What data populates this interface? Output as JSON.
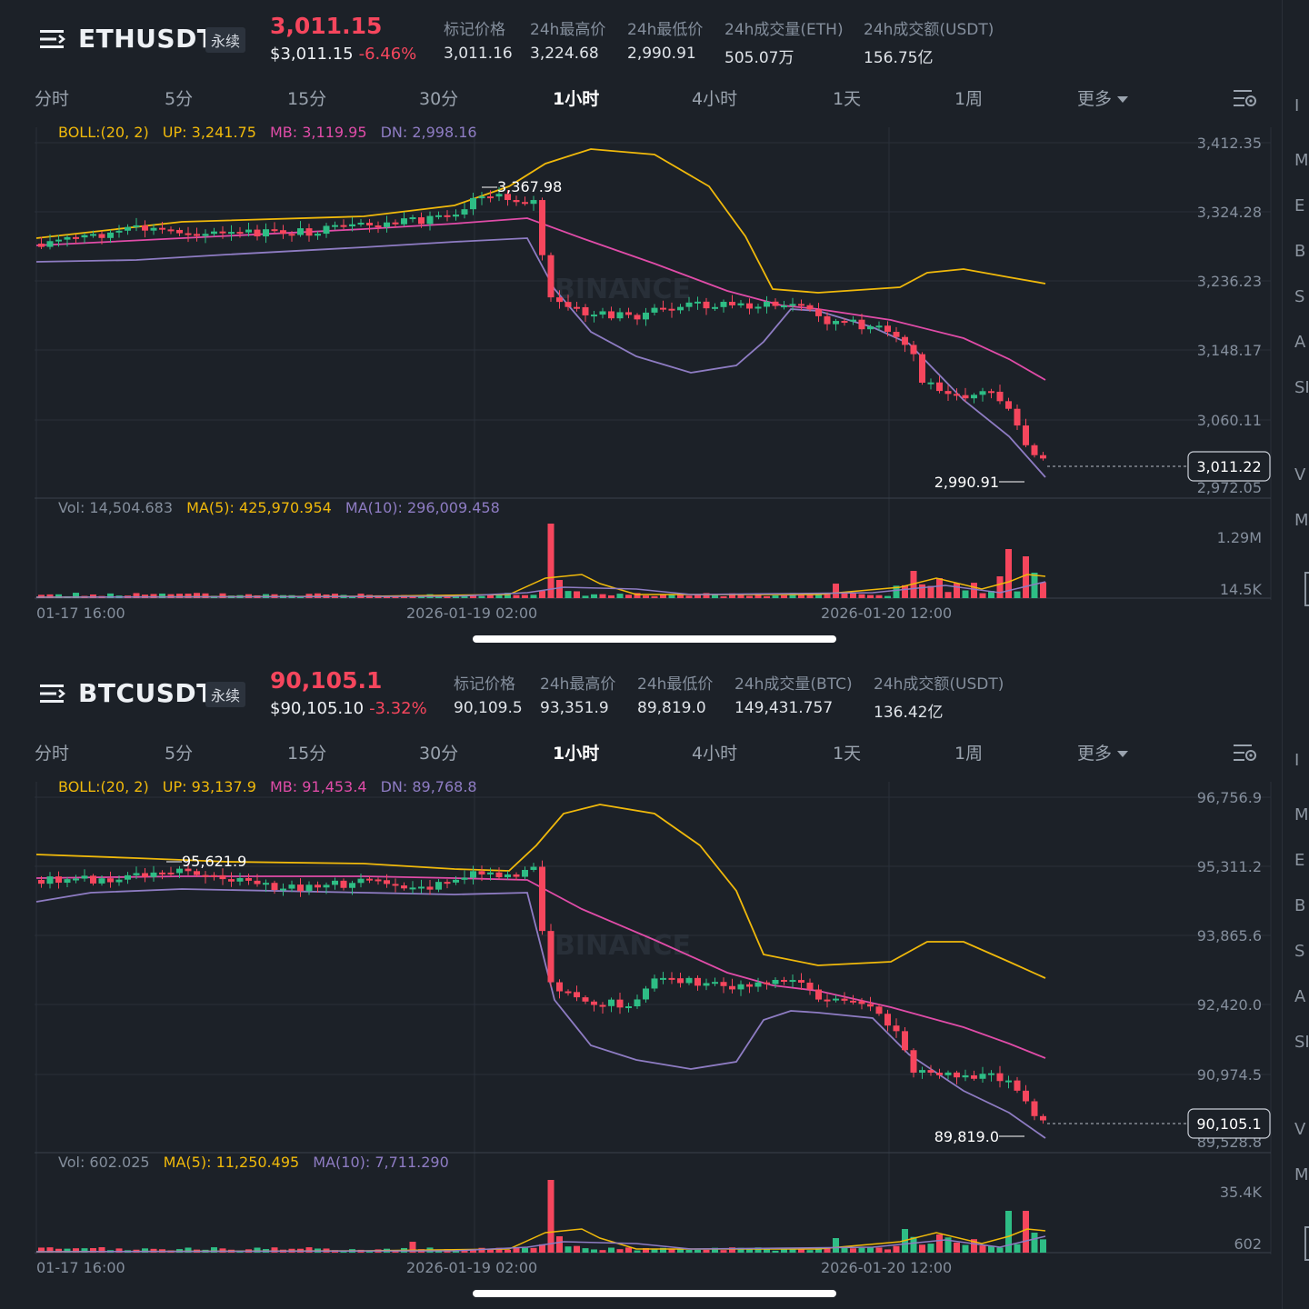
{
  "panels": [
    {
      "symbol": "ETHUSDT",
      "badge": "永续",
      "last_price": "3,011.15",
      "usd_price": "$3,011.15",
      "change_pct": "-6.46%",
      "stats": [
        {
          "label": "标记价格",
          "value": "3,011.16"
        },
        {
          "label": "24h最高价",
          "value": "3,224.68"
        },
        {
          "label": "24h最低价",
          "value": "2,990.91"
        },
        {
          "label": "24h成交量(ETH)",
          "value": "505.07万"
        },
        {
          "label": "24h成交额(USDT)",
          "value": "156.75亿"
        }
      ],
      "boll": {
        "label": "BOLL:(20, 2)",
        "up": "UP: 3,241.75",
        "mb": "MB: 3,119.95",
        "dn": "DN: 2,998.16"
      },
      "price_axis": [
        "3,412.35",
        "3,324.28",
        "3,236.23",
        "3,148.17",
        "3,060.11",
        "2,972.05"
      ],
      "current_tag": "3,011.22",
      "high_marker": "3,367.98",
      "low_marker": "2,990.91",
      "vol_legend": {
        "vol": "Vol: 14,504.683",
        "ma5": "MA(5): 425,970.954",
        "ma10": "MA(10): 296,009.458"
      },
      "vol_axis": [
        "1.29M",
        "14.5K"
      ],
      "time_axis": [
        "01-17 16:00",
        "2026-01-19 02:00",
        "2026-01-20 12:00"
      ],
      "side_letters": [
        "I",
        "M",
        "E",
        "B",
        "S",
        "A",
        "SI",
        "V",
        "M"
      ]
    },
    {
      "symbol": "BTCUSDT",
      "badge": "永续",
      "last_price": "90,105.1",
      "usd_price": "$90,105.10",
      "change_pct": "-3.32%",
      "stats": [
        {
          "label": "标记价格",
          "value": "90,109.5"
        },
        {
          "label": "24h最高价",
          "value": "93,351.9"
        },
        {
          "label": "24h最低价",
          "value": "89,819.0"
        },
        {
          "label": "24h成交量(BTC)",
          "value": "149,431.757"
        },
        {
          "label": "24h成交额(USDT)",
          "value": "136.42亿"
        }
      ],
      "boll": {
        "label": "BOLL:(20, 2)",
        "up": "UP: 93,137.9",
        "mb": "MB: 91,453.4",
        "dn": "DN: 89,768.8"
      },
      "price_axis": [
        "96,756.9",
        "95,311.2",
        "93,865.6",
        "92,420.0",
        "90,974.5",
        "89,528.8"
      ],
      "current_tag": "90,105.1",
      "high_marker": "95,621.9",
      "low_marker": "89,819.0",
      "vol_legend": {
        "vol": "Vol: 602.025",
        "ma5": "MA(5): 11,250.495",
        "ma10": "MA(10): 7,711.290"
      },
      "vol_axis": [
        "35.4K",
        "602"
      ],
      "time_axis": [
        "01-17 16:00",
        "2026-01-19 02:00",
        "2026-01-20 12:00"
      ],
      "side_letters": [
        "I",
        "M",
        "E",
        "B",
        "S",
        "A",
        "SI",
        "V",
        "M"
      ]
    }
  ],
  "tabs": [
    "分时",
    "5分",
    "15分",
    "30分",
    "1小时",
    "4小时",
    "1天",
    "1周"
  ],
  "tab_active": "1小时",
  "tab_more": "更多",
  "watermark": "BINANCE",
  "colors": {
    "up": "#2ebd85",
    "down": "#f6465d",
    "boll_up": "#f0b90b",
    "boll_mb": "#e04ca8",
    "boll_dn": "#8e7cc3",
    "background": "#1c2128"
  },
  "icons": [
    "menu-icon",
    "settings-icon",
    "caret-down-icon"
  ]
}
